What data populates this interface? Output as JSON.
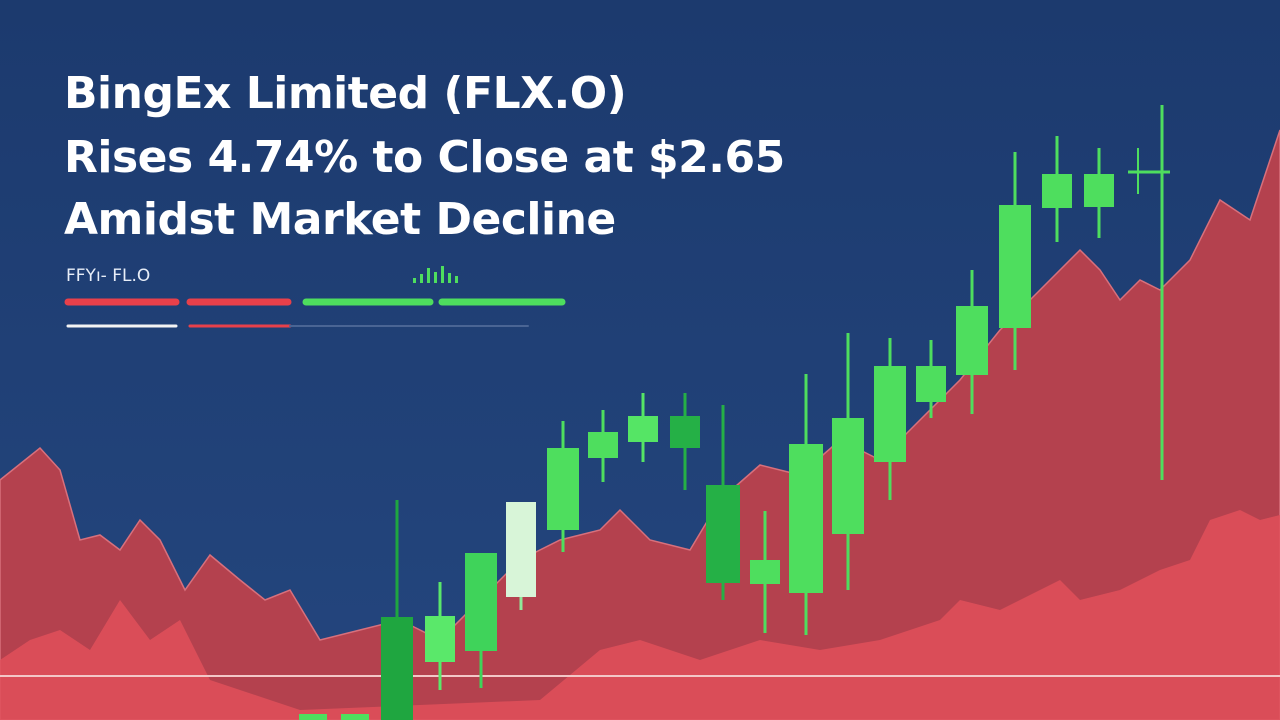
{
  "header": {
    "title_lines": [
      "BingEx Limited (FLX.O)",
      "Rises 4.74% to Close at $2.65",
      "Amidst Market Decline"
    ],
    "ticker": "FFYı- FL.O"
  }
}
